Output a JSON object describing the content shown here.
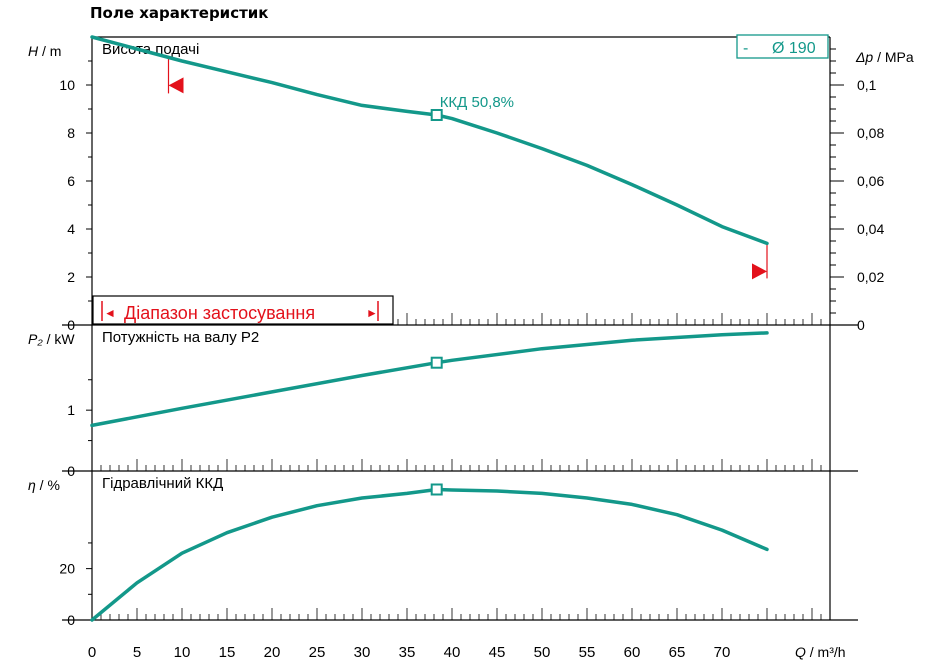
{
  "page": {
    "title": "Поле характеристик"
  },
  "colors": {
    "curve": "#13988a",
    "marker": "#e3111b",
    "grid": "#000000"
  },
  "chart_data": [
    {
      "id": "head",
      "type": "line",
      "title": "Висота подачі",
      "ylabel_var": "H",
      "ylabel_unit": "m",
      "ylim": [
        0,
        12
      ],
      "yticks": [
        0,
        2,
        4,
        6,
        8,
        10
      ],
      "secondary_axis": {
        "label_var": "Δp",
        "label_unit": "MPa",
        "ylim": [
          0,
          0.12
        ],
        "ticks": [
          0,
          0.02,
          0.04,
          0.06,
          0.08,
          0.1
        ],
        "tick_labels": [
          "0",
          "0,02",
          "0,04",
          "0,06",
          "0,08",
          "0,1"
        ]
      },
      "legend": {
        "dash": "-",
        "label": "Ø 190",
        "position": "top-right"
      },
      "series": [
        {
          "x": [
            0,
            5,
            10,
            15,
            20,
            25,
            30,
            35,
            38.3,
            40,
            45,
            50,
            55,
            60,
            65,
            70,
            75
          ],
          "y": [
            12.0,
            11.5,
            11.0,
            10.55,
            10.1,
            9.6,
            9.15,
            8.9,
            8.75,
            8.6,
            8.0,
            7.35,
            6.65,
            5.85,
            5.0,
            4.1,
            3.4
          ]
        }
      ],
      "bep": {
        "x": 38.3,
        "y": 8.75,
        "label": "ККД  50,8%"
      },
      "range_label": "Діапазон застосування",
      "range_arrow_left": "◄",
      "range_arrow_right": "►",
      "range_bounds": {
        "min_q": 8.5,
        "max_q": 75
      }
    },
    {
      "id": "power",
      "type": "line",
      "title": "Потужність на валу P2",
      "ylabel_var": "P₂",
      "ylabel_unit": "kW",
      "ylim": [
        0,
        2.4
      ],
      "yticks": [
        0,
        1
      ],
      "series": [
        {
          "x": [
            0,
            10,
            20,
            30,
            38.3,
            40,
            50,
            60,
            70,
            75
          ],
          "y": [
            0.75,
            1.03,
            1.3,
            1.57,
            1.78,
            1.82,
            2.01,
            2.15,
            2.24,
            2.27
          ]
        }
      ],
      "bep": {
        "x": 38.3,
        "y": 1.78
      }
    },
    {
      "id": "efficiency",
      "type": "line",
      "title": "Гідравлічний ККД",
      "ylabel_var": "η",
      "ylabel_unit": "%",
      "ylim": [
        0,
        58
      ],
      "yticks": [
        0,
        20
      ],
      "series": [
        {
          "x": [
            0,
            5,
            10,
            15,
            20,
            25,
            30,
            35,
            38.3,
            40,
            45,
            50,
            55,
            60,
            65,
            70,
            75
          ],
          "y": [
            0,
            14.5,
            26,
            34,
            40,
            44.5,
            47.5,
            49.3,
            50.8,
            50.6,
            50.2,
            49.3,
            47.5,
            45,
            41,
            35,
            27.5
          ]
        }
      ],
      "bep": {
        "x": 38.3,
        "y": 50.8
      }
    }
  ],
  "x_axis": {
    "label_var": "Q",
    "label_unit": "m³/h",
    "xlim": [
      0,
      82
    ],
    "ticks": [
      0,
      5,
      10,
      15,
      20,
      25,
      30,
      35,
      40,
      45,
      50,
      55,
      60,
      65,
      70
    ]
  }
}
